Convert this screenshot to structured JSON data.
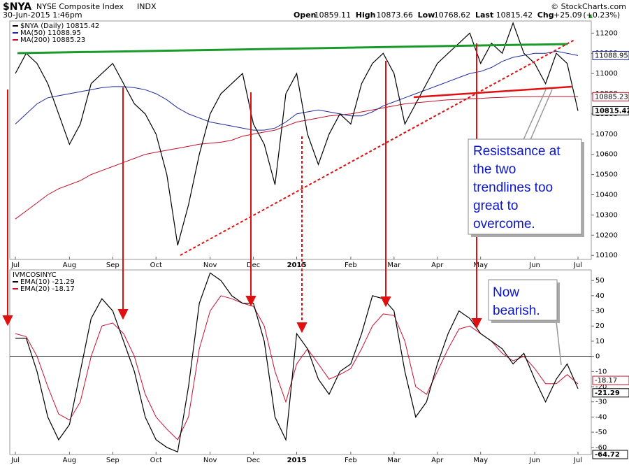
{
  "chart_data": [
    {
      "type": "line",
      "title": "$NYA",
      "subtitle": "NYSE Composite Index",
      "exchange": "INDX",
      "date": "30-Jun-2015 1:46pm",
      "credit": "© StockCharts.com",
      "quote": [
        {
          "name": "Open",
          "value": 10859.11
        },
        {
          "name": "High",
          "value": 10873.66
        },
        {
          "name": "Low",
          "value": 10768.62
        },
        {
          "name": "Last",
          "value": 10815.42
        },
        {
          "name": "Chg",
          "value": {
            "value": 25.09,
            "label": "+25.09"
          },
          "change": {
            "value": 0.23,
            "label": "(+0.23%)"
          }
        }
      ],
      "categories": [
        "Jul",
        null,
        null,
        null,
        null,
        "Aug",
        null,
        null,
        null,
        "Sep",
        null,
        null,
        null,
        "Oct",
        null,
        null,
        null,
        null,
        "Nov",
        null,
        null,
        null,
        "Dec",
        null,
        null,
        null,
        "2015",
        null,
        null,
        null,
        null,
        "Feb",
        null,
        null,
        null,
        "Mar",
        null,
        null,
        null,
        "Apr",
        null,
        null,
        null,
        "May",
        null,
        null,
        null,
        null,
        "Jun",
        null,
        null,
        null,
        "Jul"
      ],
      "series": [
        {
          "name": "$NYA (Daily) 10815.42",
          "color": "#000000",
          "end_value": 10815.42,
          "values": [
            11000,
            11100,
            11050,
            10950,
            10800,
            10650,
            10750,
            10950,
            11000,
            11050,
            10950,
            10850,
            10800,
            10700,
            10500,
            10150,
            10350,
            10600,
            10800,
            10900,
            10950,
            11000,
            10750,
            10650,
            10450,
            10900,
            11000,
            10700,
            10550,
            10700,
            10800,
            10750,
            10950,
            11050,
            11100,
            11000,
            10750,
            10850,
            10950,
            11050,
            11100,
            11150,
            11200,
            11050,
            11150,
            11100,
            11250,
            11100,
            11050,
            10950,
            11100,
            11050,
            10815.42
          ]
        },
        {
          "name": "MA(50) 11088.95",
          "color": "#1f2a9c",
          "end_value": 11088.95,
          "values": [
            10750,
            10800,
            10850,
            10880,
            10890,
            10900,
            10910,
            10920,
            10930,
            10935,
            10935,
            10930,
            10920,
            10900,
            10870,
            10830,
            10800,
            10780,
            10760,
            10750,
            10740,
            10730,
            10720,
            10720,
            10730,
            10760,
            10800,
            10810,
            10820,
            10810,
            10800,
            10790,
            10790,
            10810,
            10840,
            10860,
            10880,
            10900,
            10920,
            10940,
            10960,
            10980,
            11000,
            11010,
            11030,
            11060,
            11080,
            11090,
            11100,
            11100,
            11110,
            11100,
            11088.95
          ]
        },
        {
          "name": "MA(200) 10885.23",
          "color": "#c0102a",
          "end_value": 10885.23,
          "values": [
            10280,
            10320,
            10360,
            10400,
            10430,
            10450,
            10470,
            10500,
            10520,
            10540,
            10560,
            10580,
            10600,
            10610,
            10620,
            10630,
            10640,
            10650,
            10655,
            10660,
            10670,
            10690,
            10700,
            10710,
            10720,
            10740,
            10760,
            10770,
            10780,
            10790,
            10795,
            10800,
            10810,
            10820,
            10830,
            10840,
            10850,
            10855,
            10860,
            10865,
            10870,
            10872,
            10875,
            10877,
            10880,
            10882,
            10885,
            10885,
            10886,
            10886,
            10886,
            10886,
            10885.23
          ]
        }
      ],
      "ylim": [
        10080,
        11260
      ],
      "yticks": [
        10100,
        10200,
        10300,
        10400,
        10500,
        10600,
        10700,
        10800,
        10900,
        11000,
        11100,
        11200
      ],
      "annotation": [
        "Resistsance at",
        "the two",
        "trendlines too",
        "great to",
        "overcome."
      ]
    },
    {
      "type": "line",
      "title": "IVMCOSINYC",
      "categories": [
        "Jul",
        null,
        null,
        null,
        null,
        "Aug",
        null,
        null,
        null,
        "Sep",
        null,
        null,
        null,
        "Oct",
        null,
        null,
        null,
        null,
        "Nov",
        null,
        null,
        null,
        "Dec",
        null,
        null,
        null,
        "2015",
        null,
        null,
        null,
        null,
        "Feb",
        null,
        null,
        null,
        "Mar",
        null,
        null,
        null,
        "Apr",
        null,
        null,
        null,
        "May",
        null,
        null,
        null,
        null,
        "Jun",
        null,
        null,
        null,
        "Jul"
      ],
      "series": [
        {
          "name": "EMA(10) -21.29",
          "color": "#000000",
          "end_value": -21.29,
          "values": [
            12,
            12,
            -10,
            -40,
            -55,
            -45,
            -10,
            25,
            38,
            30,
            10,
            -10,
            -40,
            -55,
            -60,
            -63,
            -20,
            35,
            55,
            50,
            40,
            35,
            35,
            10,
            -40,
            -55,
            15,
            5,
            -15,
            -25,
            -10,
            -5,
            15,
            40,
            38,
            30,
            -10,
            -40,
            -30,
            -5,
            15,
            30,
            25,
            15,
            10,
            5,
            -5,
            2,
            -15,
            -30,
            -15,
            -5,
            -21.29
          ]
        },
        {
          "name": "EMA(20) -18.17",
          "color": "#c8102e",
          "end_value": -18.17,
          "values": [
            15,
            13,
            0,
            -20,
            -38,
            -42,
            -30,
            0,
            20,
            22,
            15,
            0,
            -25,
            -40,
            -48,
            -55,
            -40,
            5,
            30,
            40,
            38,
            35,
            33,
            20,
            -10,
            -30,
            -5,
            5,
            -5,
            -15,
            -12,
            -8,
            5,
            20,
            28,
            27,
            10,
            -20,
            -25,
            -10,
            5,
            18,
            20,
            15,
            10,
            2,
            -3,
            0,
            -8,
            -18,
            -18,
            -12,
            -18.17
          ]
        }
      ],
      "ylim": [
        -64.72,
        57
      ],
      "yticks": [
        -60,
        -50,
        -40,
        -30,
        -20,
        -10,
        0,
        10,
        20,
        30,
        40,
        50
      ],
      "reference_line": 0,
      "annotation": [
        "Now",
        "bearish."
      ]
    }
  ]
}
